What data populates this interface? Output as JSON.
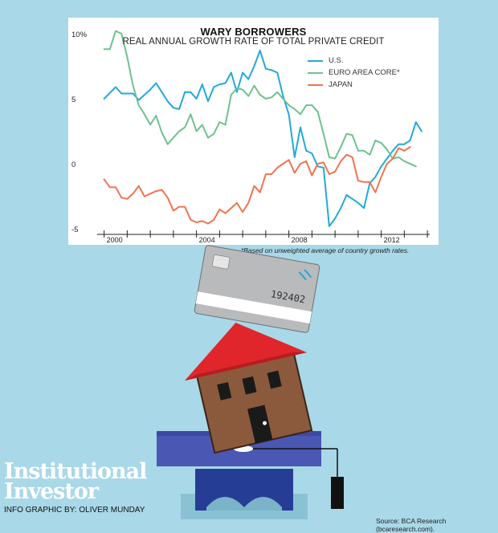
{
  "chart_data": {
    "type": "line",
    "title": "WARY BORROWERS",
    "subtitle": "REAL ANNUAL GROWTH RATE OF TOTAL PRIVATE CREDIT",
    "xlabel": "",
    "ylabel": "",
    "xlim": [
      1999.7,
      2014.1
    ],
    "ylim": [
      -5.3,
      10.3
    ],
    "x_ticks": [
      2000,
      2001,
      2002,
      2003,
      2004,
      2005,
      2006,
      2007,
      2008,
      2009,
      2010,
      2011,
      2012,
      2013,
      2014
    ],
    "x_tick_labels": {
      "2000": "2000",
      "2004": "2004",
      "2008": "2008",
      "2012": "2012"
    },
    "y_ticks": [
      10,
      5,
      0,
      -5
    ],
    "y_tick_labels": [
      "10%",
      "5",
      "0",
      "-5"
    ],
    "grid": false,
    "legend_position": "top-right",
    "series": [
      {
        "name": "U.S.",
        "color": "#23a8db",
        "x": [
          2000,
          2000.5,
          2000.75,
          2001.25,
          2001.5,
          2002,
          2002.25,
          2002.5,
          2002.75,
          2003,
          2003.25,
          2003.5,
          2003.75,
          2004,
          2004.25,
          2004.5,
          2004.75,
          2005,
          2005.25,
          2005.5,
          2005.75,
          2006,
          2006.25,
          2006.5,
          2006.75,
          2007,
          2007.25,
          2007.5,
          2007.75,
          2008,
          2008.25,
          2008.5,
          2008.75,
          2009,
          2009.25,
          2009.5,
          2009.75,
          2010,
          2010.25,
          2010.5,
          2010.75,
          2011,
          2011.25,
          2011.5,
          2011.75,
          2012,
          2012.25,
          2012.5,
          2012.75,
          2013,
          2013.25,
          2013.5,
          2013.75
        ],
        "values": [
          5.0,
          5.9,
          5.4,
          5.4,
          4.9,
          5.7,
          6.2,
          5.5,
          4.8,
          4.3,
          4.2,
          5.5,
          5.5,
          5.0,
          6.1,
          4.8,
          5.9,
          6.1,
          6.2,
          7.0,
          5.5,
          7.0,
          6.5,
          7.5,
          8.7,
          7.3,
          7.2,
          7.0,
          5.2,
          3.8,
          0.5,
          2.8,
          1.0,
          0.8,
          -0.2,
          -0.3,
          -4.8,
          -4.2,
          -3.4,
          -2.4,
          -2.7,
          -3.0,
          -3.4,
          -1.5,
          -1.0,
          -0.2,
          0.4,
          1.0,
          1.5,
          1.5,
          1.8,
          3.2,
          2.5
        ]
      },
      {
        "name": "EURO AREA CORE*",
        "color": "#6fc18f",
        "x": [
          2000,
          2000.25,
          2000.5,
          2000.75,
          2001,
          2001.25,
          2001.5,
          2001.75,
          2002,
          2002.25,
          2002.5,
          2002.75,
          2003,
          2003.25,
          2003.5,
          2003.75,
          2004,
          2004.25,
          2004.5,
          2004.75,
          2005,
          2005.25,
          2005.5,
          2005.75,
          2006,
          2006.25,
          2006.5,
          2006.75,
          2007,
          2007.25,
          2007.5,
          2007.75,
          2008,
          2008.25,
          2008.5,
          2008.75,
          2009,
          2009.25,
          2009.5,
          2009.75,
          2010,
          2010.25,
          2010.5,
          2010.75,
          2011,
          2011.25,
          2011.5,
          2011.75,
          2012,
          2012.25,
          2012.5,
          2012.75,
          2013,
          2013.25,
          2013.5
        ],
        "values": [
          8.8,
          8.8,
          10.2,
          10.0,
          8.2,
          6.0,
          4.5,
          3.8,
          3.0,
          3.7,
          2.4,
          1.5,
          2.0,
          2.5,
          2.8,
          3.8,
          2.5,
          3.0,
          2.0,
          2.3,
          3.2,
          3.0,
          5.3,
          5.8,
          5.7,
          5.2,
          6.0,
          5.3,
          5.0,
          5.1,
          5.5,
          5.0,
          4.5,
          4.2,
          3.8,
          4.5,
          4.5,
          4.0,
          2.3,
          0.5,
          0.4,
          1.3,
          2.3,
          2.2,
          1.0,
          1.0,
          0.7,
          1.8,
          1.6,
          1.1,
          0.4,
          0.5,
          0.2,
          0.0,
          -0.2
        ]
      },
      {
        "name": "JAPAN",
        "color": "#f07350",
        "x": [
          2000,
          2000.25,
          2000.5,
          2000.75,
          2001,
          2001.25,
          2001.5,
          2001.75,
          2002,
          2002.25,
          2002.5,
          2002.75,
          2003,
          2003.25,
          2003.5,
          2003.75,
          2004,
          2004.25,
          2004.5,
          2004.75,
          2005,
          2005.25,
          2005.5,
          2005.75,
          2006,
          2006.25,
          2006.5,
          2006.75,
          2007,
          2007.25,
          2007.5,
          2007.75,
          2008,
          2008.25,
          2008.5,
          2008.75,
          2009,
          2009.25,
          2009.5,
          2009.75,
          2010,
          2010.25,
          2010.5,
          2010.75,
          2011,
          2011.25,
          2011.5,
          2011.75,
          2012,
          2012.25,
          2012.5,
          2012.75,
          2013,
          2013.25
        ],
        "values": [
          -1.2,
          -1.8,
          -1.8,
          -2.6,
          -2.7,
          -2.3,
          -1.7,
          -2.5,
          -2.3,
          -2.1,
          -2.0,
          -2.6,
          -3.6,
          -3.3,
          -3.3,
          -4.3,
          -4.5,
          -4.4,
          -4.6,
          -4.3,
          -3.5,
          -3.8,
          -3.4,
          -3.0,
          -3.7,
          -3.0,
          -1.7,
          -2.2,
          -0.8,
          -0.8,
          -0.3,
          0.0,
          0.3,
          -0.7,
          0.0,
          0.2,
          -0.9,
          0.0,
          0.1,
          -0.8,
          -0.6,
          0.2,
          0.7,
          0.5,
          -1.3,
          -1.4,
          -1.4,
          -2.2,
          -1.0,
          0.0,
          0.4,
          1.2,
          1.0,
          1.3
        ]
      }
    ]
  },
  "footnote": "*Based on unweighted average of country growth rates.",
  "card_number": "192402",
  "logo": {
    "line1": "Institutional",
    "line2": "Investor"
  },
  "credit": "INFO GRAPHIC BY: OLIVER MUNDAY",
  "source": "Source: BCA Research (bcaresearch.com).",
  "colors": {
    "background": "#a9d8e8",
    "roof": "#e0262b",
    "house": "#8b5a3c",
    "card": "#b9babb",
    "cap_top": "#4a57b3",
    "cap_base": "#263d95"
  }
}
